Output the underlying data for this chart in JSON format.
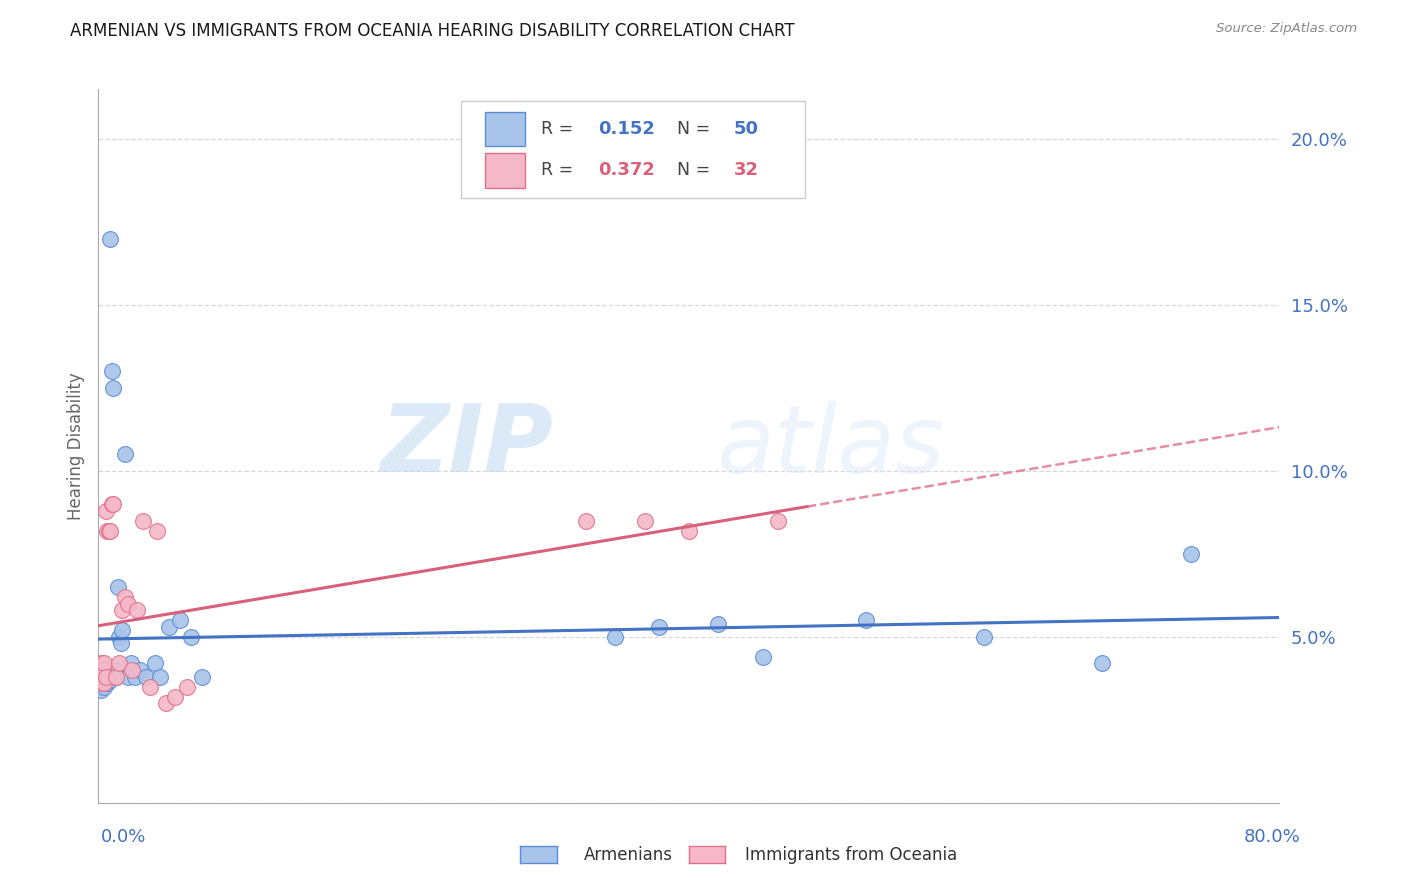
{
  "title": "ARMENIAN VS IMMIGRANTS FROM OCEANIA HEARING DISABILITY CORRELATION CHART",
  "source": "Source: ZipAtlas.com",
  "ylabel": "Hearing Disability",
  "xlim": [
    0.0,
    0.8
  ],
  "ylim": [
    0.0,
    0.215
  ],
  "yticks": [
    0.0,
    0.05,
    0.1,
    0.15,
    0.2
  ],
  "ytick_labels": [
    "",
    "5.0%",
    "10.0%",
    "15.0%",
    "20.0%"
  ],
  "watermark_text": "ZIPatlas",
  "color_armenian_fill": "#a8c4e8",
  "color_armenian_edge": "#5b8dd9",
  "color_oceania_fill": "#f5b8c8",
  "color_oceania_edge": "#e0708a",
  "color_line_armenian": "#4472c4",
  "color_line_oceania": "#d9607a",
  "color_axis_blue": "#4472c4",
  "color_title": "#1a1a1a",
  "color_source": "#888888",
  "color_grid": "#d8d8d8",
  "color_ylabel": "#666666",
  "background_color": "#ffffff",
  "armenian_x": [
    0.001,
    0.001,
    0.002,
    0.002,
    0.002,
    0.002,
    0.003,
    0.003,
    0.003,
    0.003,
    0.004,
    0.004,
    0.004,
    0.005,
    0.005,
    0.005,
    0.006,
    0.006,
    0.007,
    0.007,
    0.008,
    0.008,
    0.009,
    0.01,
    0.011,
    0.012,
    0.013,
    0.014,
    0.015,
    0.016,
    0.018,
    0.02,
    0.022,
    0.025,
    0.028,
    0.032,
    0.038,
    0.042,
    0.048,
    0.055,
    0.063,
    0.07,
    0.35,
    0.38,
    0.42,
    0.45,
    0.52,
    0.6,
    0.68,
    0.74
  ],
  "armenian_y": [
    0.035,
    0.038,
    0.036,
    0.04,
    0.038,
    0.034,
    0.037,
    0.039,
    0.036,
    0.038,
    0.04,
    0.035,
    0.037,
    0.039,
    0.036,
    0.038,
    0.04,
    0.036,
    0.038,
    0.04,
    0.038,
    0.037,
    0.035,
    0.039,
    0.04,
    0.038,
    0.065,
    0.05,
    0.048,
    0.052,
    0.06,
    0.038,
    0.042,
    0.038,
    0.04,
    0.038,
    0.042,
    0.038,
    0.053,
    0.055,
    0.05,
    0.038,
    0.05,
    0.053,
    0.054,
    0.044,
    0.055,
    0.05,
    0.042,
    0.075
  ],
  "armenian_y_outliers": [
    [
      0.008,
      0.17
    ],
    [
      0.009,
      0.13
    ],
    [
      0.01,
      0.125
    ],
    [
      0.018,
      0.105
    ]
  ],
  "oceania_x": [
    0.001,
    0.001,
    0.002,
    0.002,
    0.003,
    0.003,
    0.004,
    0.004,
    0.005,
    0.005,
    0.006,
    0.007,
    0.008,
    0.009,
    0.01,
    0.012,
    0.014,
    0.016,
    0.018,
    0.02,
    0.023,
    0.026,
    0.03,
    0.035,
    0.04,
    0.046,
    0.052,
    0.06,
    0.33,
    0.37,
    0.4,
    0.46
  ],
  "oceania_y": [
    0.038,
    0.04,
    0.036,
    0.042,
    0.038,
    0.04,
    0.042,
    0.036,
    0.04,
    0.038,
    0.04,
    0.082,
    0.082,
    0.09,
    0.088,
    0.038,
    0.042,
    0.058,
    0.062,
    0.06,
    0.04,
    0.058,
    0.045,
    0.035,
    0.038,
    0.03,
    0.032,
    0.035,
    0.085,
    0.085,
    0.082,
    0.085
  ],
  "oceania_y_outliers": [
    [
      0.005,
      0.088
    ],
    [
      0.006,
      0.082
    ],
    [
      0.01,
      0.09
    ],
    [
      0.03,
      0.085
    ],
    [
      0.04,
      0.082
    ]
  ],
  "legend_r1_val": "0.152",
  "legend_n1_val": "50",
  "legend_r2_val": "0.372",
  "legend_n2_val": "32"
}
